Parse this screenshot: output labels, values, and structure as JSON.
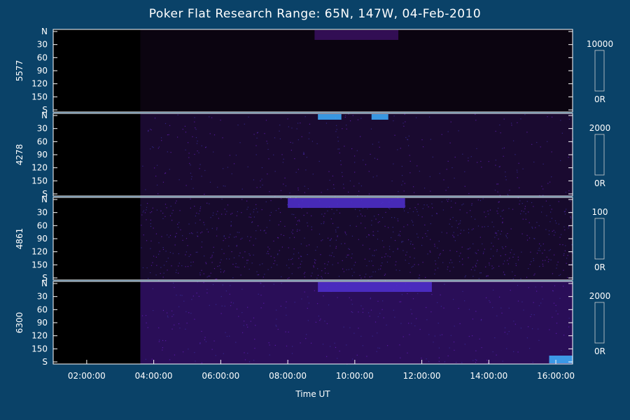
{
  "title": "Poker Flat Research Range: 65N, 147W, 04-Feb-2010",
  "chart_data": {
    "type": "heatmap",
    "title": "Poker Flat Research Range: 65N, 147W, 04-Feb-2010",
    "xlabel": "Time UT",
    "x_ticks": [
      "02:00:00",
      "04:00:00",
      "06:00:00",
      "08:00:00",
      "10:00:00",
      "12:00:00",
      "14:00:00",
      "16:00:00"
    ],
    "x_range_hours": [
      1.0,
      16.5
    ],
    "y_ticks": [
      "N",
      "30",
      "60",
      "90",
      "120",
      "150",
      "S"
    ],
    "panels": [
      {
        "ylabel": "5577",
        "colorbar_max": "10000",
        "colorbar_min": "0R",
        "data_start_hour": 3.6,
        "features": [
          {
            "hour_start": 8.8,
            "hour_end": 11.3,
            "zenith": "N",
            "intensity": "low"
          }
        ]
      },
      {
        "ylabel": "4278",
        "colorbar_max": "2000",
        "colorbar_min": "0R",
        "data_start_hour": 3.6,
        "features": [
          {
            "hour_start": 8.9,
            "hour_end": 9.6,
            "zenith": "N",
            "intensity": "high"
          },
          {
            "hour_start": 10.5,
            "hour_end": 11.0,
            "zenith": "N",
            "intensity": "high"
          }
        ]
      },
      {
        "ylabel": "4861",
        "colorbar_max": "100",
        "colorbar_min": "0R",
        "data_start_hour": 3.6,
        "features": [
          {
            "hour_start": 8.0,
            "hour_end": 11.5,
            "zenith": "N",
            "intensity": "medium"
          }
        ]
      },
      {
        "ylabel": "6300",
        "colorbar_max": "2000",
        "colorbar_min": "0R",
        "data_start_hour": 3.6,
        "features": [
          {
            "hour_start": 8.9,
            "hour_end": 12.3,
            "zenith": "N",
            "intensity": "medium"
          },
          {
            "hour_start": 15.8,
            "hour_end": 16.5,
            "zenith": "S",
            "intensity": "high"
          }
        ]
      }
    ]
  }
}
